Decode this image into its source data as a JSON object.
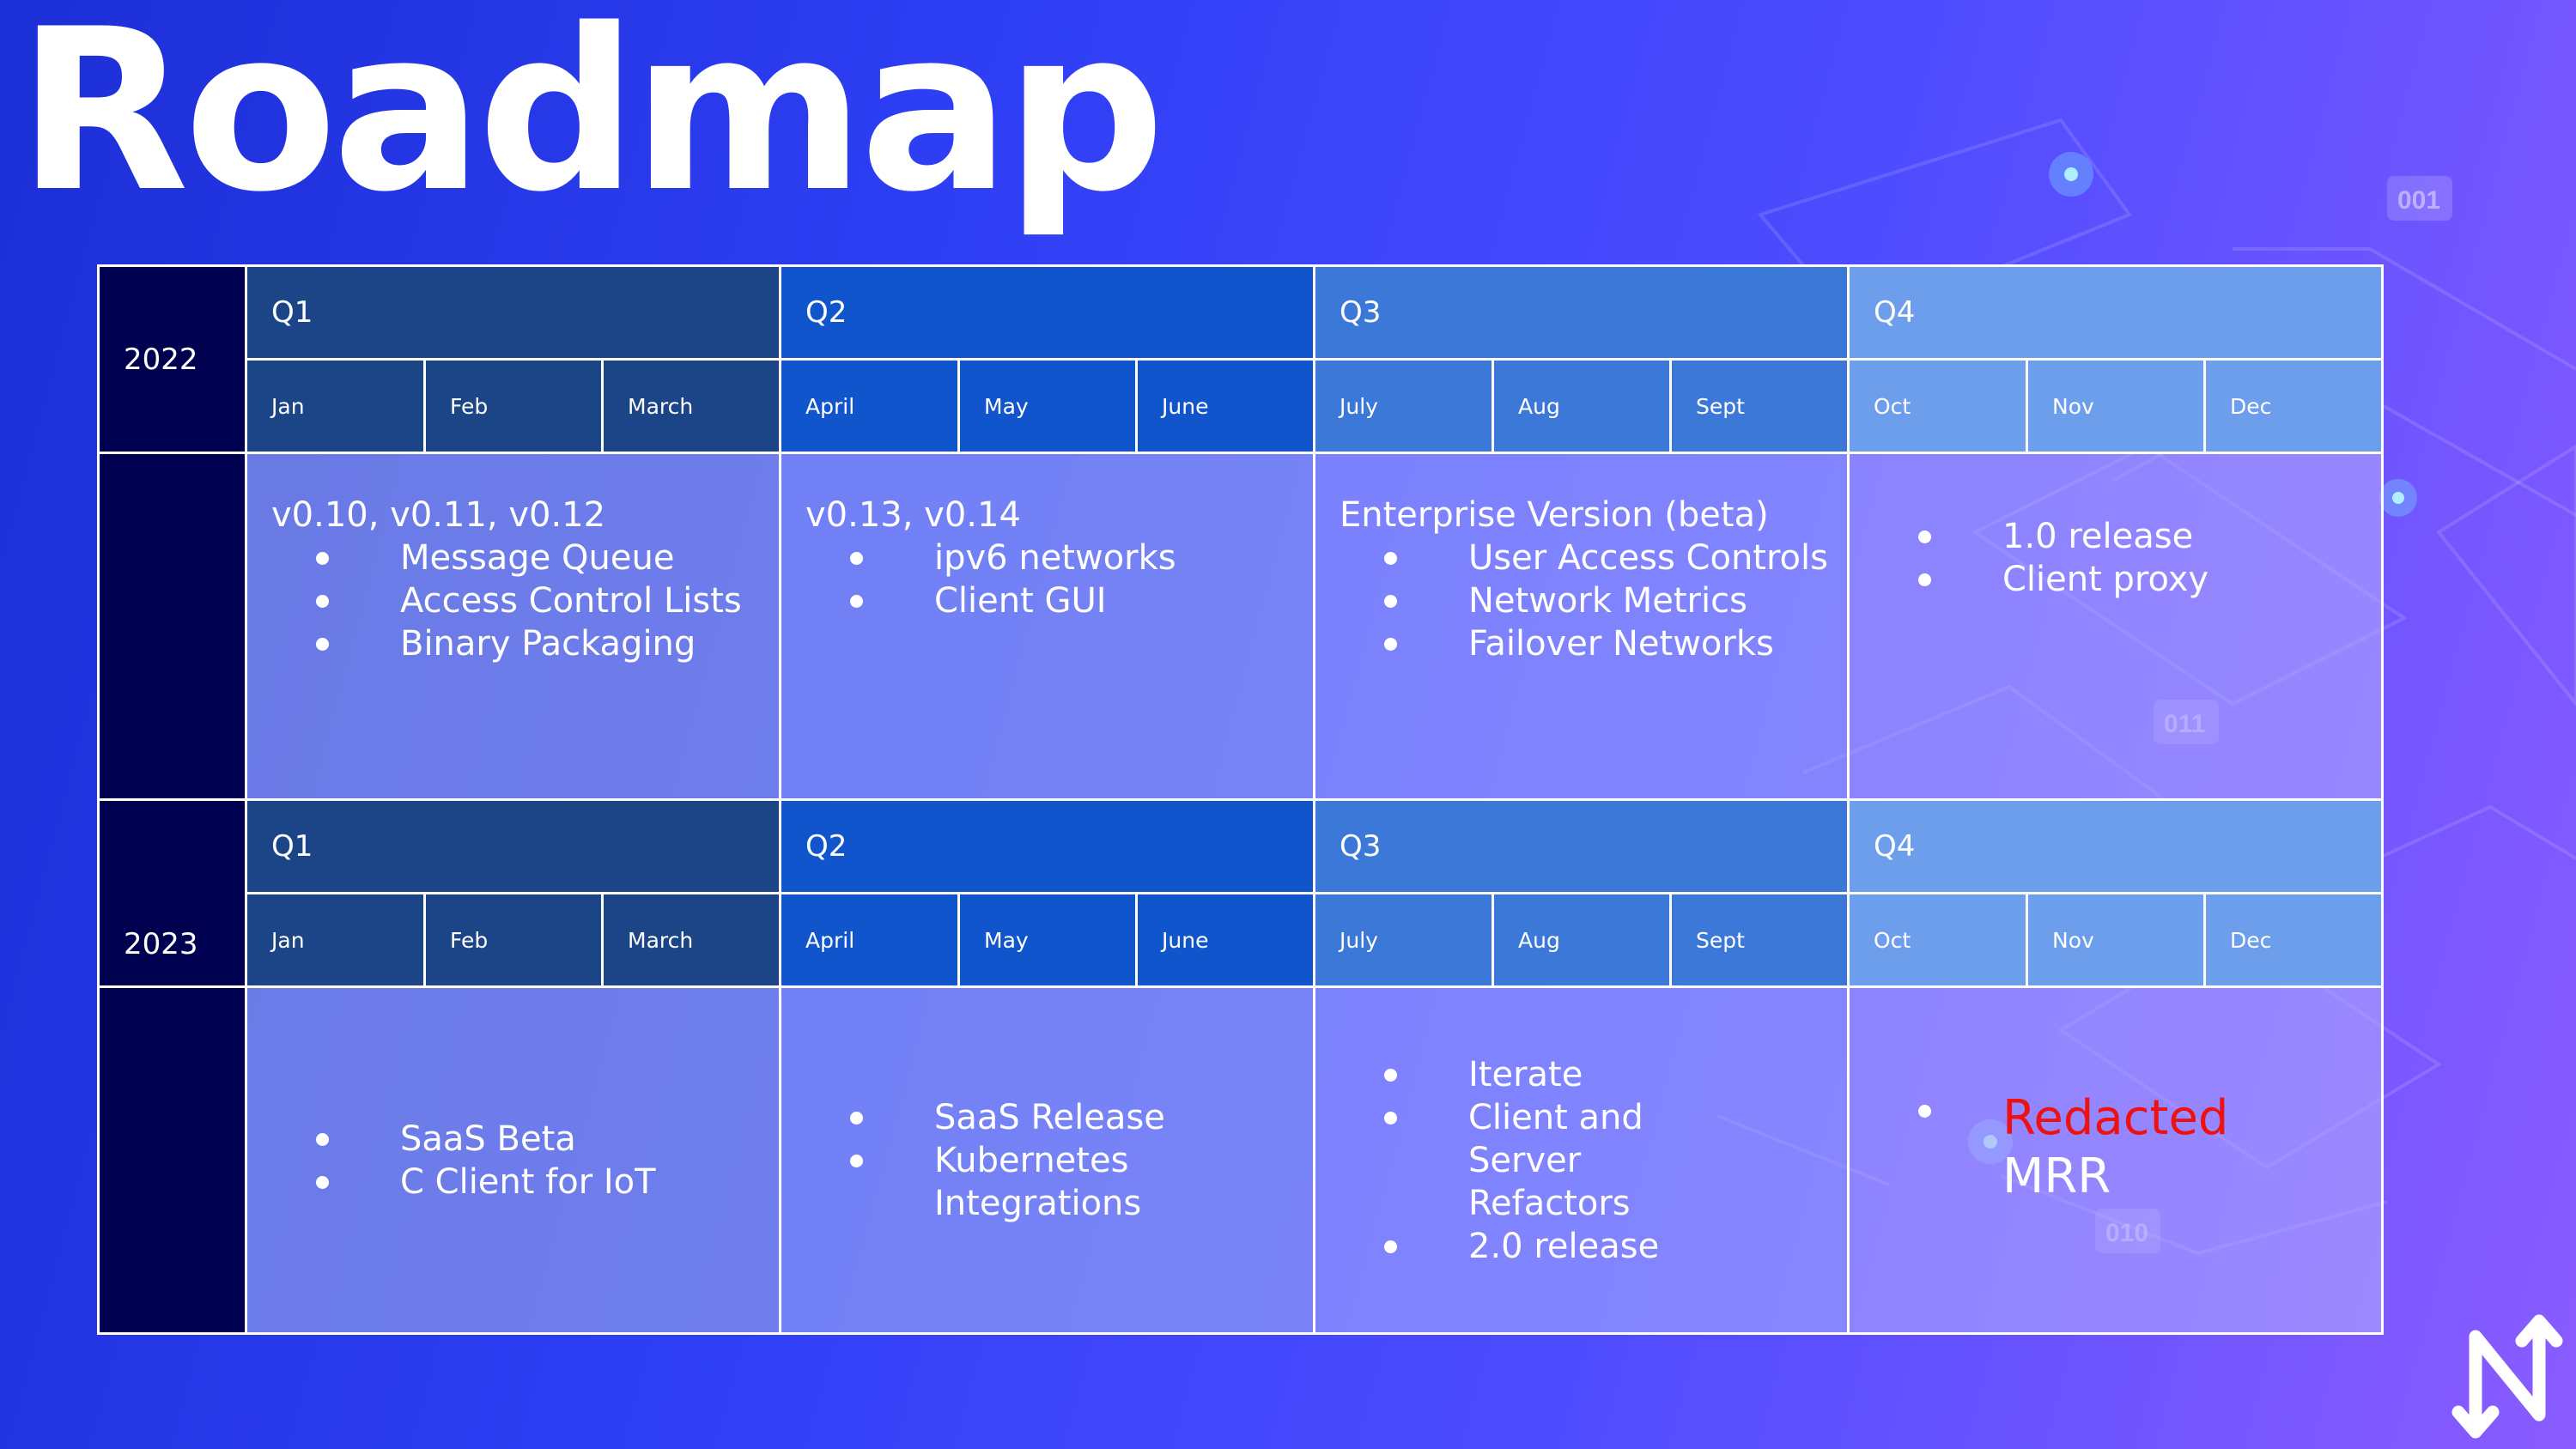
{
  "title": "Roadmap",
  "years": [
    {
      "year": "2022",
      "quarters": [
        "Q1",
        "Q2",
        "Q3",
        "Q4"
      ],
      "months": [
        "Jan",
        "Feb",
        "March",
        "April",
        "May",
        "June",
        "July",
        "Aug",
        "Sept",
        "Oct",
        "Nov",
        "Dec"
      ],
      "cells": [
        {
          "heading": "v0.10, v0.11, v0.12",
          "items": [
            "Message Queue",
            "Access Control Lists",
            "Binary Packaging"
          ]
        },
        {
          "heading": "v0.13, v0.14",
          "items": [
            "ipv6 networks",
            "Client GUI"
          ]
        },
        {
          "heading": "Enterprise Version (beta)",
          "items": [
            "User Access Controls",
            "Network Metrics",
            "Failover Networks"
          ]
        },
        {
          "heading": "",
          "items": [
            "1.0 release",
            "Client proxy"
          ]
        }
      ]
    },
    {
      "year": "2023",
      "quarters": [
        "Q1",
        "Q2",
        "Q3",
        "Q4"
      ],
      "months": [
        "Jan",
        "Feb",
        "March",
        "April",
        "May",
        "June",
        "July",
        "Aug",
        "Sept",
        "Oct",
        "Nov",
        "Dec"
      ],
      "cells": [
        {
          "items": [
            "SaaS Beta",
            "C Client for IoT"
          ]
        },
        {
          "items": [
            "SaaS Release",
            "Kubernetes Integrations"
          ]
        },
        {
          "items": [
            "Iterate",
            "Client and Server Refactors",
            "2.0 release"
          ]
        },
        {
          "redacted": "Redacted",
          "suffix": "MRR"
        }
      ]
    }
  ],
  "decor_labels": [
    "001",
    "011",
    "010"
  ],
  "colors": {
    "year_cell": "#000050",
    "q1": "#1c4587",
    "q2": "#1155cc",
    "q3": "#3c78d8",
    "q4": "#6d9eeb",
    "redacted_text": "#ee1111"
  },
  "logo_icon": "netmaker-logo-icon"
}
